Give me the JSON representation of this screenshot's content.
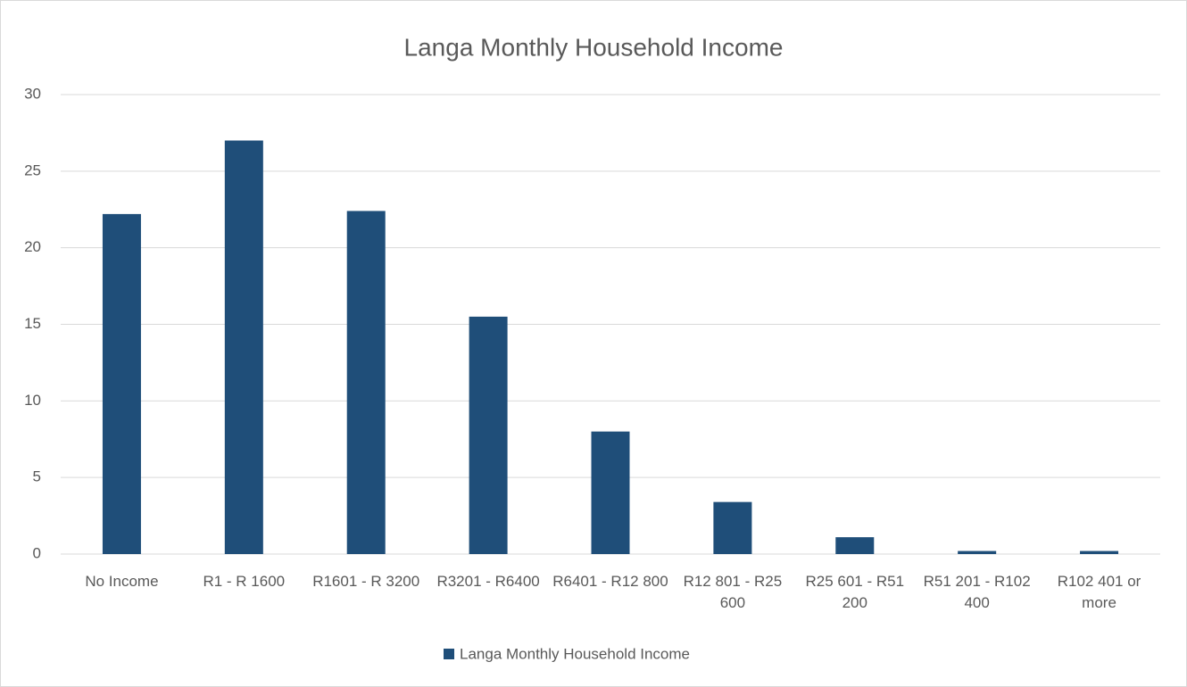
{
  "chart_data": {
    "type": "bar",
    "title": "Langa Monthly Household Income",
    "categories": [
      "No Income",
      "R1 - R 1600",
      "R1601 - R 3200",
      "R3201 - R6400",
      "R6401 - R12 800",
      "R12 801 - R25 600",
      "R25 601 - R51 200",
      "R51 201 - R102 400",
      "R102 401 or more"
    ],
    "series": [
      {
        "name": "Langa Monthly Household Income",
        "color": "#1f4e79",
        "values": [
          22.2,
          27,
          22.4,
          15.5,
          8,
          3.4,
          1.1,
          0.2,
          0.2
        ]
      }
    ],
    "ylim": [
      0,
      30
    ],
    "yticks": [
      0,
      5,
      10,
      15,
      20,
      25,
      30
    ],
    "grid": true,
    "legend": "bottom"
  }
}
